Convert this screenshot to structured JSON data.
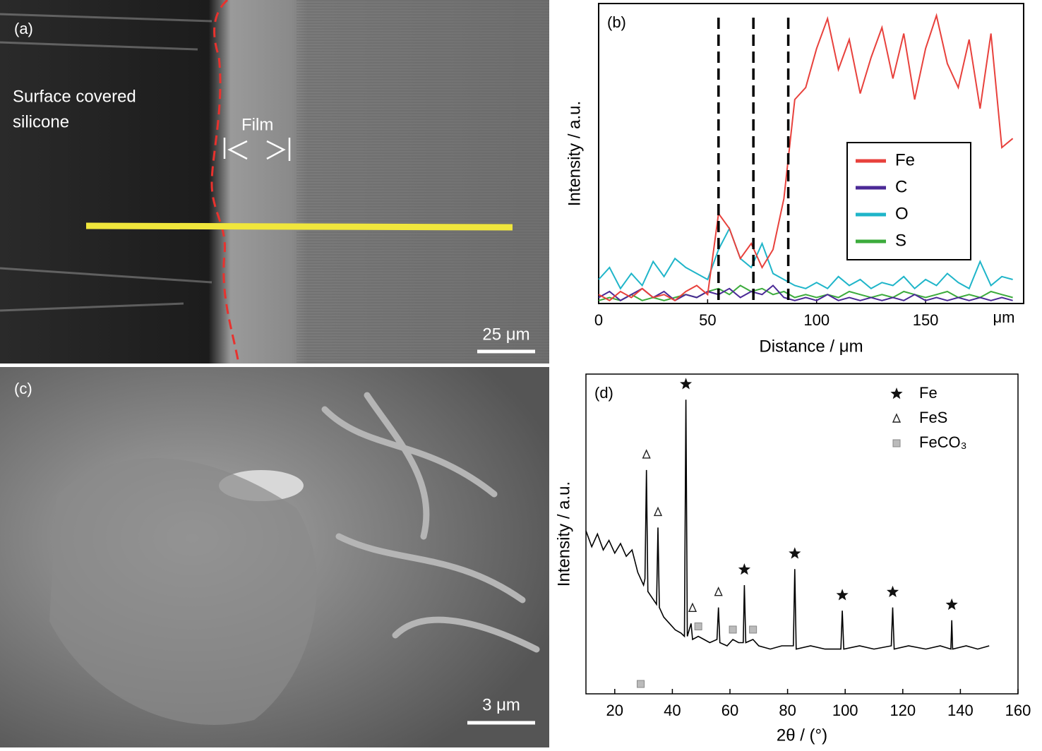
{
  "panels": {
    "a": {
      "label": "(a)",
      "surface": [
        "Surface covered",
        "silicone"
      ],
      "film": "Film",
      "scale": "25 μm"
    },
    "c": {
      "label": "(c)",
      "scale": "3 μm"
    }
  },
  "chart_data": [
    {
      "type": "line",
      "label": "(b)",
      "xlabel": "Distance / μm",
      "ylabel": "Intensity / a.u.",
      "x_unit": "μm",
      "xlim": [
        0,
        195
      ],
      "ylim": [
        0,
        100
      ],
      "xticks": [
        0,
        50,
        100,
        150
      ],
      "vlines": [
        55,
        71,
        87
      ],
      "x": [
        0,
        5,
        10,
        15,
        20,
        25,
        30,
        35,
        40,
        45,
        50,
        55,
        60,
        65,
        70,
        75,
        80,
        85,
        90,
        95,
        100,
        105,
        110,
        115,
        120,
        125,
        130,
        135,
        140,
        145,
        150,
        155,
        160,
        165,
        170,
        175,
        180,
        185,
        190
      ],
      "series": [
        {
          "name": "Fe",
          "color": "#e8413c",
          "values": [
            3,
            1,
            4,
            2,
            5,
            2,
            3,
            1,
            4,
            6,
            3,
            30,
            25,
            15,
            20,
            12,
            18,
            35,
            68,
            72,
            85,
            95,
            78,
            88,
            70,
            82,
            92,
            75,
            90,
            68,
            85,
            96,
            80,
            72,
            88,
            65,
            90,
            52,
            55
          ]
        },
        {
          "name": "C",
          "color": "#4b2a96",
          "values": [
            2,
            4,
            1,
            3,
            5,
            2,
            4,
            1,
            3,
            2,
            4,
            3,
            5,
            2,
            4,
            3,
            6,
            2,
            1,
            2,
            1,
            3,
            1,
            2,
            1,
            2,
            1,
            2,
            1,
            3,
            1,
            2,
            1,
            2,
            1,
            2,
            1,
            2,
            1
          ]
        },
        {
          "name": "O",
          "color": "#1fb5c9",
          "values": [
            8,
            12,
            5,
            10,
            6,
            14,
            9,
            15,
            12,
            10,
            8,
            18,
            25,
            15,
            12,
            20,
            10,
            8,
            6,
            5,
            7,
            5,
            9,
            6,
            8,
            5,
            7,
            6,
            9,
            5,
            8,
            6,
            10,
            7,
            5,
            14,
            6,
            9,
            8
          ]
        },
        {
          "name": "S",
          "color": "#3cab3c",
          "values": [
            1,
            2,
            1,
            3,
            1,
            2,
            1,
            2,
            3,
            2,
            4,
            5,
            3,
            6,
            4,
            5,
            3,
            4,
            2,
            3,
            2,
            3,
            2,
            4,
            3,
            2,
            3,
            2,
            4,
            3,
            2,
            3,
            4,
            2,
            3,
            2,
            4,
            3,
            2
          ]
        }
      ]
    },
    {
      "type": "line",
      "label": "(d)",
      "xlabel": "2θ / (°)",
      "ylabel": "Intensity / a.u.",
      "xlim": [
        10,
        160
      ],
      "ylim": [
        0,
        100
      ],
      "xticks": [
        20,
        40,
        60,
        80,
        100,
        120,
        140,
        160
      ],
      "color": "#000000",
      "x": [
        10,
        12,
        14,
        16,
        18,
        20,
        22,
        24,
        26,
        28,
        30,
        30.5,
        31,
        31.5,
        33,
        34.5,
        35,
        35.5,
        37,
        39,
        41,
        43,
        44.2,
        44.7,
        45.2,
        46.5,
        47,
        49,
        51,
        53,
        55.5,
        56,
        56.5,
        59,
        61,
        63,
        64.6,
        65,
        65.5,
        68,
        70,
        74,
        78,
        82,
        82.5,
        83,
        88,
        93,
        98.5,
        99,
        99.5,
        105,
        110,
        116,
        116.5,
        117,
        122,
        128,
        133,
        136.7,
        137,
        137.3,
        142,
        146,
        150
      ],
      "values": [
        51,
        46,
        50,
        45,
        48,
        44,
        47,
        43,
        45,
        38,
        34,
        36,
        70,
        32,
        30,
        28,
        52,
        27,
        24,
        22,
        20,
        19,
        18,
        92,
        18,
        22,
        17,
        18,
        17,
        16,
        17,
        27,
        16,
        15,
        17,
        16,
        16,
        34,
        16,
        17,
        15,
        14,
        15,
        15,
        39,
        14,
        15,
        14,
        14,
        26,
        14,
        15,
        14,
        15,
        27,
        14,
        15,
        14,
        15,
        14,
        23,
        14,
        15,
        14,
        15
      ],
      "phases": [
        {
          "name": "Fe",
          "symbol": "star",
          "x": [
            44.7,
            65,
            82.5,
            99,
            116.5,
            137
          ]
        },
        {
          "name": "FeS",
          "symbol": "triangle",
          "x": [
            31,
            35,
            47,
            56
          ]
        },
        {
          "name": "FeCO₃",
          "symbol": "square",
          "x": [
            29,
            49,
            61,
            68
          ]
        }
      ]
    }
  ]
}
